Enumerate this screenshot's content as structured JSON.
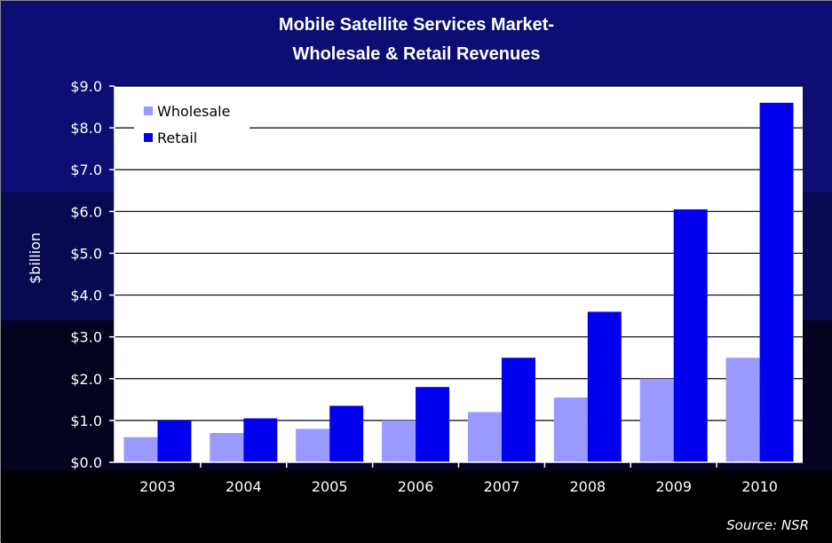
{
  "title_line1": "Mobile Satellite Services Market-",
  "title_line2": "Wholesale & Retail Revenues",
  "source": "Source: NSR",
  "colors": {
    "wholesale": "#9999ff",
    "retail": "#0000ee",
    "band_top": "#0d0d73",
    "band_mid": "#090952",
    "band_low": "#030320",
    "band_bottom": "#000000",
    "plot_bg": "#ffffff",
    "text": "#ffffff"
  },
  "chart_data": {
    "type": "bar",
    "categories": [
      "2003",
      "2004",
      "2005",
      "2006",
      "2007",
      "2008",
      "2009",
      "2010"
    ],
    "series": [
      {
        "name": "Wholesale",
        "values": [
          0.6,
          0.7,
          0.8,
          1.0,
          1.2,
          1.55,
          2.0,
          2.5
        ]
      },
      {
        "name": "Retail",
        "values": [
          1.0,
          1.05,
          1.35,
          1.8,
          2.5,
          3.6,
          6.05,
          8.6
        ]
      }
    ],
    "ylabel": "$billion",
    "xlabel": "",
    "ylim": [
      0,
      9
    ],
    "yticks": [
      "$0.0",
      "$1.0",
      "$2.0",
      "$3.0",
      "$4.0",
      "$5.0",
      "$6.0",
      "$7.0",
      "$8.0",
      "$9.0"
    ],
    "grid": true,
    "legend_position": "top-left"
  }
}
